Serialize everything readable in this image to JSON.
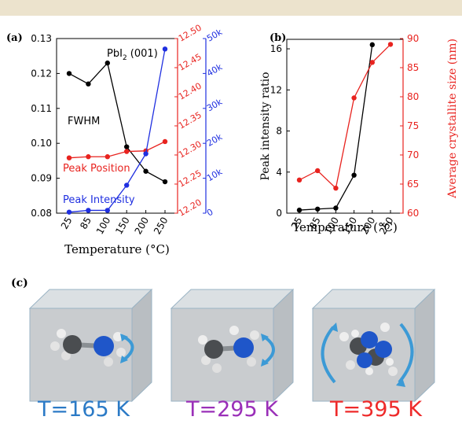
{
  "panel_labels": {
    "a": "(a)",
    "b": "(b)",
    "c": "(c)"
  },
  "chart_data": [
    {
      "type": "line",
      "panel": "a",
      "xlabel": "Temperature (°C)",
      "categories": [
        "25",
        "85",
        "100",
        "150",
        "200",
        "250"
      ],
      "annotation": "PbI2 (001)",
      "annotation_main": "PbI",
      "annotation_sub": "2",
      "annotation_rest": " (001)",
      "axes": {
        "left": {
          "ylim": [
            0.08,
            0.13
          ],
          "ticks": [
            "0.08",
            "0.09",
            "0.10",
            "0.11",
            "0.12",
            "0.13"
          ],
          "color": "#000000"
        },
        "right1": {
          "ylim": [
            12.2,
            12.5
          ],
          "ticks": [
            "12.20",
            "12.25",
            "12.30",
            "12.35",
            "12.40",
            "12.45",
            "12.50"
          ],
          "color": "#e8231f"
        },
        "right2": {
          "ylim": [
            0,
            50000
          ],
          "ticks": [
            "0",
            "10k",
            "20k",
            "30k",
            "40k",
            "50k"
          ],
          "color": "#1f2fe0"
        }
      },
      "series": [
        {
          "name": "FWHM",
          "axis": "left",
          "color": "#000000",
          "x": [
            "25",
            "85",
            "100",
            "150",
            "200",
            "250"
          ],
          "values": [
            0.12,
            0.117,
            0.123,
            0.099,
            0.092,
            0.089
          ]
        },
        {
          "name": "Peak Position",
          "axis": "right1",
          "color": "#e8231f",
          "x": [
            "25",
            "85",
            "100",
            "150",
            "200",
            "250"
          ],
          "values": [
            12.295,
            12.297,
            12.297,
            12.306,
            12.307,
            12.323
          ]
        },
        {
          "name": "Peak Intensity",
          "axis": "right2",
          "color": "#1f2fe0",
          "x": [
            "25",
            "85",
            "100",
            "150",
            "200",
            "250"
          ],
          "values": [
            300,
            800,
            800,
            8000,
            17000,
            47000
          ]
        }
      ]
    },
    {
      "type": "line",
      "panel": "b",
      "xlabel": "Temperature (°C)",
      "categories": [
        "25",
        "85",
        "100",
        "150",
        "200",
        "250"
      ],
      "axes": {
        "left": {
          "label": "Peak intensity ratio",
          "ylim": [
            0,
            17
          ],
          "ticks": [
            "0",
            "4",
            "8",
            "12",
            "16"
          ],
          "tick_values": [
            0,
            4,
            8,
            12,
            16
          ],
          "color": "#000000"
        },
        "right": {
          "label": "Average crystallite size (nm)",
          "ylim": [
            60,
            90
          ],
          "ticks": [
            "60",
            "65",
            "70",
            "75",
            "80",
            "85",
            "90"
          ],
          "tick_values": [
            60,
            65,
            70,
            75,
            80,
            85,
            90
          ],
          "color": "#e8231f"
        }
      },
      "series": [
        {
          "axis": "left",
          "color": "#000000",
          "x": [
            "25",
            "85",
            "100",
            "150",
            "200"
          ],
          "values": [
            0.3,
            0.4,
            0.5,
            3.7,
            16.4
          ]
        },
        {
          "axis": "right",
          "color": "#e8231f",
          "x": [
            "25",
            "85",
            "100",
            "150",
            "200",
            "250"
          ],
          "values": [
            65.7,
            67.3,
            64.3,
            79.8,
            85.9,
            89.0
          ]
        }
      ]
    }
  ],
  "panel_c": {
    "captions": [
      {
        "text": "T=165 K",
        "color": "#2b7ac6"
      },
      {
        "text": "T=295 K",
        "color": "#9a2fb8"
      },
      {
        "text": "T=395 K",
        "color": "#ee2a2a"
      }
    ]
  }
}
